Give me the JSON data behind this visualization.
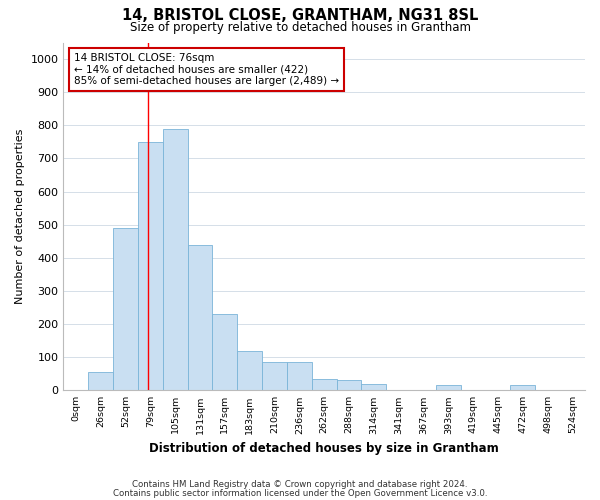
{
  "title1": "14, BRISTOL CLOSE, GRANTHAM, NG31 8SL",
  "title2": "Size of property relative to detached houses in Grantham",
  "xlabel": "Distribution of detached houses by size in Grantham",
  "ylabel": "Number of detached properties",
  "bin_labels": [
    "0sqm",
    "26sqm",
    "52sqm",
    "79sqm",
    "105sqm",
    "131sqm",
    "157sqm",
    "183sqm",
    "210sqm",
    "236sqm",
    "262sqm",
    "288sqm",
    "314sqm",
    "341sqm",
    "367sqm",
    "393sqm",
    "419sqm",
    "445sqm",
    "472sqm",
    "498sqm",
    "524sqm"
  ],
  "bar_heights": [
    0,
    55,
    490,
    750,
    790,
    440,
    230,
    120,
    85,
    85,
    35,
    30,
    20,
    0,
    0,
    15,
    0,
    0,
    15,
    0,
    0
  ],
  "bar_color": "#c9dff2",
  "bar_edge_color": "#7ab4d8",
  "grid_color": "#d5dfe8",
  "annotation_text": "14 BRISTOL CLOSE: 76sqm\n← 14% of detached houses are smaller (422)\n85% of semi-detached houses are larger (2,489) →",
  "annotation_box_color": "#ffffff",
  "annotation_box_edge": "#cc0000",
  "footer1": "Contains HM Land Registry data © Crown copyright and database right 2024.",
  "footer2": "Contains public sector information licensed under the Open Government Licence v3.0.",
  "ylim": [
    0,
    1050
  ],
  "yticks": [
    0,
    100,
    200,
    300,
    400,
    500,
    600,
    700,
    800,
    900,
    1000
  ],
  "figsize": [
    6.0,
    5.0
  ],
  "dpi": 100
}
